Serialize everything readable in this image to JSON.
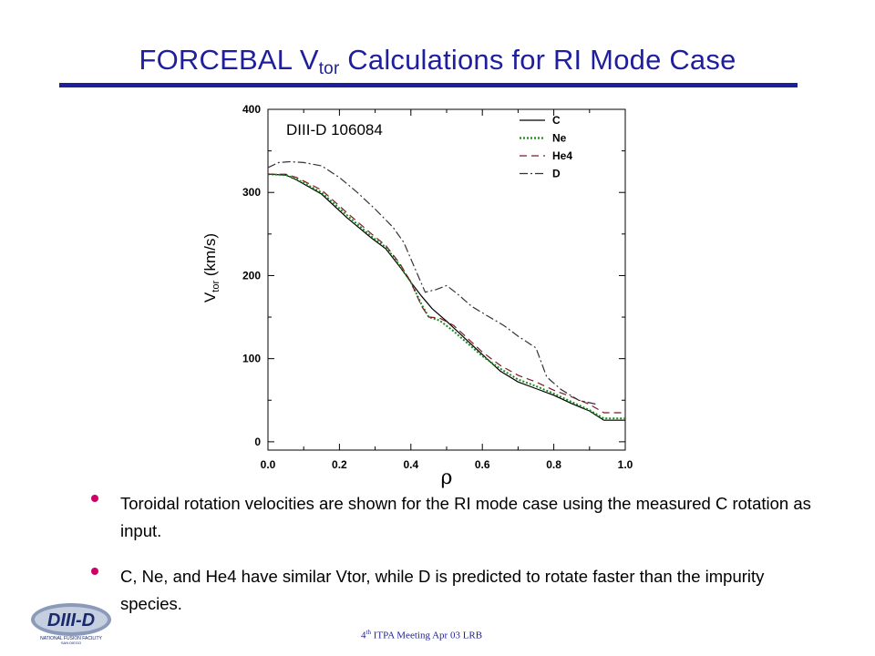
{
  "slide": {
    "title_main": "FORCEBAL V",
    "title_sub": "tor",
    "title_rest": " Calculations for RI Mode Case",
    "bullets": [
      "Toroidal rotation velocities are shown for the RI mode case using the measured C rotation as input.",
      "C, Ne, and He4 have similar Vtor, while D is predicted to rotate faster than the impurity species."
    ],
    "footer_ord": "4",
    "footer_ord_sup": "th",
    "footer_rest": " ITPA Meeting  Apr 03  LRB",
    "logo_text": "DIII-D",
    "logo_subtext": "NATIONAL FUSION FACILITY",
    "logo_city": "SAN DIEGO",
    "colors": {
      "title": "#1f1f9e",
      "bullet": "#cc0066"
    }
  },
  "chart_data": {
    "type": "line",
    "annotation": "DIII-D  106084",
    "xlabel": "ρ",
    "ylabel_main": "V",
    "ylabel_sub": "tor",
    "ylabel_unit": " (km/s)",
    "xlim": [
      0,
      1
    ],
    "ylim": [
      -10,
      400
    ],
    "x_ticks": [
      0.0,
      0.2,
      0.4,
      0.6,
      0.8,
      1.0
    ],
    "x_tick_labels": [
      "0.0",
      "0.2",
      "0.4",
      "0.6",
      "0.8",
      "1.0"
    ],
    "y_ticks": [
      0,
      100,
      200,
      300,
      400
    ],
    "y_tick_labels": [
      "0",
      "100",
      "200",
      "300",
      "400"
    ],
    "grid": false,
    "legend_position": "top-right",
    "series": [
      {
        "name": "C",
        "color": "#000000",
        "dash": "",
        "x": [
          0.0,
          0.05,
          0.08,
          0.15,
          0.22,
          0.29,
          0.33,
          0.37,
          0.4,
          0.43,
          0.46,
          0.5,
          0.55,
          0.6,
          0.65,
          0.7,
          0.75,
          0.8,
          0.85,
          0.9,
          0.94,
          1.0
        ],
        "y": [
          322,
          321,
          315,
          298,
          270,
          245,
          232,
          210,
          192,
          175,
          160,
          145,
          125,
          105,
          85,
          72,
          64,
          56,
          46,
          37,
          26,
          26
        ]
      },
      {
        "name": "Ne",
        "color": "#1a8a1a",
        "dash": "2,2",
        "x": [
          0.0,
          0.05,
          0.08,
          0.15,
          0.22,
          0.29,
          0.33,
          0.37,
          0.4,
          0.43,
          0.45,
          0.48,
          0.52,
          0.56,
          0.6,
          0.65,
          0.7,
          0.75,
          0.8,
          0.85,
          0.9,
          0.94,
          1.0
        ],
        "y": [
          322,
          321,
          316,
          300,
          273,
          247,
          234,
          212,
          192,
          165,
          150,
          146,
          133,
          118,
          103,
          88,
          75,
          67,
          58,
          48,
          38,
          28,
          28
        ]
      },
      {
        "name": "He4",
        "color": "#7a1a2a",
        "dash": "8,5",
        "x": [
          0.0,
          0.05,
          0.08,
          0.15,
          0.22,
          0.29,
          0.33,
          0.37,
          0.4,
          0.43,
          0.45,
          0.48,
          0.52,
          0.56,
          0.6,
          0.65,
          0.7,
          0.75,
          0.8,
          0.85,
          0.9,
          0.94,
          1.0
        ],
        "y": [
          322,
          322,
          318,
          303,
          276,
          250,
          236,
          214,
          192,
          163,
          150,
          149,
          140,
          124,
          108,
          92,
          80,
          72,
          62,
          54,
          45,
          35,
          35
        ]
      },
      {
        "name": "D",
        "color": "#333333",
        "dash": "9,3,2,3",
        "x": [
          0.0,
          0.03,
          0.06,
          0.1,
          0.15,
          0.2,
          0.25,
          0.3,
          0.35,
          0.38,
          0.41,
          0.44,
          0.47,
          0.5,
          0.53,
          0.57,
          0.62,
          0.66,
          0.7,
          0.75,
          0.78,
          0.82,
          0.87,
          0.92
        ],
        "y": [
          330,
          336,
          337,
          336,
          332,
          318,
          300,
          280,
          258,
          240,
          210,
          180,
          183,
          188,
          178,
          163,
          150,
          140,
          127,
          113,
          78,
          63,
          50,
          45
        ]
      }
    ]
  }
}
